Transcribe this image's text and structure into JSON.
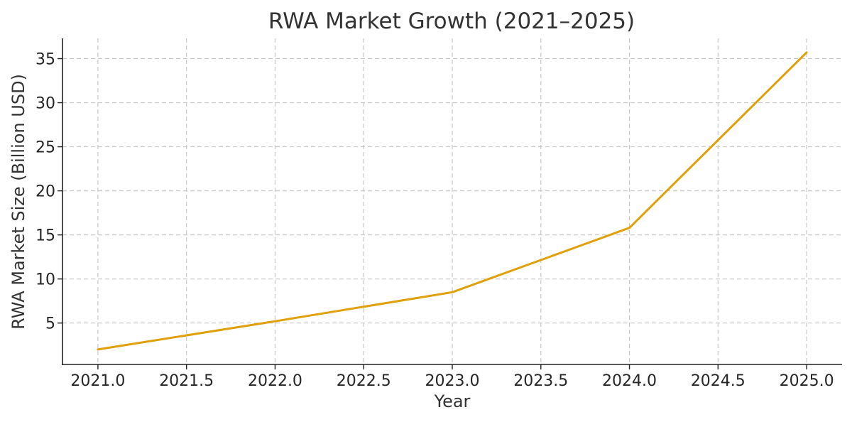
{
  "chart_data": {
    "type": "line",
    "title": "RWA Market Growth (2021–2025)",
    "xlabel": "Year",
    "ylabel": "RWA Market Size (Billion USD)",
    "xlim": [
      2020.8,
      2025.2
    ],
    "ylim": [
      0.3,
      37.3
    ],
    "xticks": [
      2021.0,
      2021.5,
      2022.0,
      2022.5,
      2023.0,
      2023.5,
      2024.0,
      2024.5,
      2025.0
    ],
    "xtick_labels": [
      "2021.0",
      "2021.5",
      "2022.0",
      "2022.5",
      "2023.0",
      "2023.5",
      "2024.0",
      "2024.5",
      "2025.0"
    ],
    "yticks": [
      5,
      10,
      15,
      20,
      25,
      30,
      35
    ],
    "ytick_labels": [
      "5",
      "10",
      "15",
      "20",
      "25",
      "30",
      "35"
    ],
    "grid": true,
    "series": [
      {
        "color": "#e0a00a",
        "x": [
          2021,
          2022,
          2023,
          2024,
          2025
        ],
        "y": [
          2.0,
          5.2,
          8.5,
          15.8,
          35.7
        ]
      }
    ]
  }
}
